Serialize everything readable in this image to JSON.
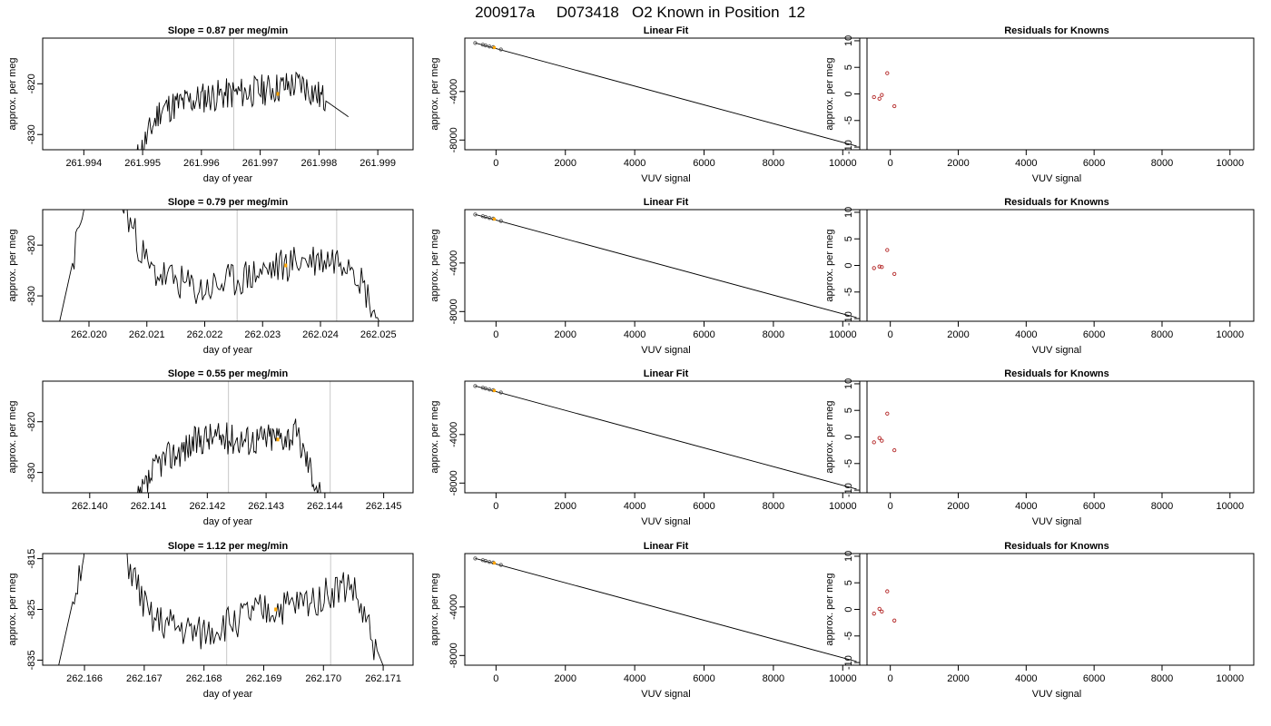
{
  "figure": {
    "title": "200917a     D073418   O2 Known in Position  12",
    "columns": [
      {
        "title_template": "Slope =  {slope}  per meg/min",
        "xlabel": "day of year",
        "ylabel": "approx. per meg"
      },
      {
        "title": "Linear Fit",
        "xlabel": "VUV signal",
        "ylabel": "approx. per meg"
      },
      {
        "title": "Residuals for Knowns",
        "xlabel": "VUV signal",
        "ylabel": "approx. per meg"
      }
    ],
    "colors": {
      "trace": "#000000",
      "marker_line": "#c8c8c8",
      "highlight": "#ffa500",
      "residual_point": "#b22222"
    }
  },
  "chart_data": [
    {
      "type": "line",
      "row": 1,
      "title": "Slope =  0.87  per meg/min",
      "slope": "0.87",
      "xlabel": "day of year",
      "ylabel": "approx. per meg",
      "xlim": [
        261.9933,
        261.9996
      ],
      "ylim": [
        -833,
        -811
      ],
      "xticks": [
        261.994,
        261.995,
        261.996,
        261.997,
        261.998,
        261.999
      ],
      "xtick_labels": [
        "261.994",
        "261.995",
        "261.996",
        "261.997",
        "261.998",
        "261.999"
      ],
      "yticks": [
        -820,
        -830
      ],
      "ytick_labels": [
        "-820",
        "-830"
      ],
      "markers": [
        261.99655,
        261.99828
      ],
      "trace": {
        "x_start": 261.9945,
        "x_end": 261.9985,
        "segments": [
          [
            -845,
            -825
          ],
          [
            -825,
            -822.5
          ],
          [
            -822.5,
            -821.5
          ],
          [
            -821.5,
            -820
          ],
          [
            -820,
            -826.5
          ]
        ],
        "noise": 1.6,
        "seed": 11
      },
      "highlight": {
        "x": 261.9973,
        "y": -822
      }
    },
    {
      "type": "line",
      "row": 2,
      "title": "Slope =  0.79  per meg/min",
      "slope": "0.79",
      "xlabel": "day of year",
      "ylabel": "approx. per meg",
      "xlim": [
        262.0192,
        262.0256
      ],
      "ylim": [
        -835,
        -813
      ],
      "xticks": [
        262.02,
        262.021,
        262.022,
        262.023,
        262.024,
        262.025
      ],
      "xtick_labels": [
        "262.020",
        "262.021",
        "262.022",
        "262.023",
        "262.024",
        "262.025"
      ],
      "yticks": [
        -820,
        -830
      ],
      "ytick_labels": [
        "-820",
        "-830"
      ],
      "markers": [
        262.02256,
        262.02428
      ],
      "trace": {
        "x_start": 262.0193,
        "x_end": 262.0254,
        "segments": [
          [
            -845,
            -800
          ],
          [
            -800,
            -825
          ],
          [
            -825,
            -829
          ],
          [
            -829,
            -826
          ],
          [
            -826,
            -823
          ],
          [
            -823,
            -822.5
          ],
          [
            -822.5,
            -845
          ]
        ],
        "noise": 1.8,
        "seed": 23
      },
      "highlight": {
        "x": 262.0234,
        "y": -824
      }
    },
    {
      "type": "line",
      "row": 3,
      "title": "Slope =  0.55  per meg/min",
      "slope": "0.55",
      "xlabel": "day of year",
      "ylabel": "approx. per meg",
      "xlim": [
        262.1392,
        262.1455
      ],
      "ylim": [
        -834,
        -812
      ],
      "xticks": [
        262.14,
        262.141,
        262.142,
        262.143,
        262.144,
        262.145
      ],
      "xtick_labels": [
        "262.140",
        "262.141",
        "262.142",
        "262.143",
        "262.144",
        "262.145"
      ],
      "yticks": [
        -820,
        -830
      ],
      "ytick_labels": [
        "-820",
        "-830"
      ],
      "markers": [
        262.14236,
        262.14409
      ],
      "trace": {
        "x_start": 262.1404,
        "x_end": 262.1443,
        "segments": [
          [
            -845,
            -828
          ],
          [
            -828,
            -823
          ],
          [
            -823,
            -823.5
          ],
          [
            -823.5,
            -822.5
          ],
          [
            -822.5,
            -845
          ]
        ],
        "noise": 1.6,
        "seed": 37
      },
      "highlight": {
        "x": 262.1432,
        "y": -823.5
      }
    },
    {
      "type": "line",
      "row": 4,
      "title": "Slope =  1.12  per meg/min",
      "slope": "1.12",
      "xlabel": "day of year",
      "ylabel": "approx. per meg",
      "xlim": [
        262.1653,
        262.1715
      ],
      "ylim": [
        -836,
        -814
      ],
      "xticks": [
        262.166,
        262.167,
        262.168,
        262.169,
        262.17,
        262.171
      ],
      "xtick_labels": [
        "262.166",
        "262.167",
        "262.168",
        "262.169",
        "262.170",
        "262.171"
      ],
      "yticks": [
        -815,
        -825,
        -835
      ],
      "ytick_labels": [
        "-815",
        "-825",
        "-835"
      ],
      "markers": [
        262.16838,
        262.17012
      ],
      "trace": {
        "x_start": 262.1654,
        "x_end": 262.1713,
        "segments": [
          [
            -845,
            -800
          ],
          [
            -800,
            -827
          ],
          [
            -827,
            -830
          ],
          [
            -830,
            -826
          ],
          [
            -826,
            -824
          ],
          [
            -824,
            -820
          ],
          [
            -820,
            -845
          ]
        ],
        "noise": 1.8,
        "seed": 51
      },
      "highlight": {
        "x": 262.1692,
        "y": -825
      }
    },
    {
      "type": "scatter",
      "row": 1,
      "title": "Linear Fit",
      "xlabel": "VUV signal",
      "ylabel": "approx. per meg",
      "xlim": [
        -900,
        10700
      ],
      "ylim": [
        -8800,
        400
      ],
      "xticks": [
        0,
        2000,
        4000,
        6000,
        8000,
        10000
      ],
      "xtick_labels": [
        "0",
        "2000",
        "4000",
        "6000",
        "8000",
        "10000"
      ],
      "yticks": [
        -4000,
        -8000
      ],
      "ytick_labels": [
        "-4000",
        "-8000"
      ],
      "fit_line": [
        [
          -600,
          0
        ],
        [
          10400,
          -8500
        ]
      ],
      "points": [
        [
          -600,
          -5
        ],
        [
          -380,
          -140
        ],
        [
          -300,
          -205
        ],
        [
          -190,
          -290
        ],
        [
          -80,
          -345
        ],
        [
          140,
          -535
        ]
      ],
      "highlight": {
        "x": -50,
        "y": -380
      }
    },
    {
      "type": "scatter",
      "row": 2,
      "title": "Linear Fit",
      "xlabel": "VUV signal",
      "ylabel": "approx. per meg",
      "xlim": [
        -900,
        10700
      ],
      "ylim": [
        -8800,
        400
      ],
      "xticks": [
        0,
        2000,
        4000,
        6000,
        8000,
        10000
      ],
      "xtick_labels": [
        "0",
        "2000",
        "4000",
        "6000",
        "8000",
        "10000"
      ],
      "yticks": [
        -4000,
        -8000
      ],
      "ytick_labels": [
        "-4000",
        "-8000"
      ],
      "fit_line": [
        [
          -600,
          0
        ],
        [
          10400,
          -8500
        ]
      ],
      "points": [
        [
          -600,
          -5
        ],
        [
          -380,
          -140
        ],
        [
          -300,
          -205
        ],
        [
          -190,
          -290
        ],
        [
          -80,
          -345
        ],
        [
          140,
          -535
        ]
      ],
      "highlight": {
        "x": -50,
        "y": -380
      }
    },
    {
      "type": "scatter",
      "row": 3,
      "title": "Linear Fit",
      "xlabel": "VUV signal",
      "ylabel": "approx. per meg",
      "xlim": [
        -900,
        10700
      ],
      "ylim": [
        -8800,
        400
      ],
      "xticks": [
        0,
        2000,
        4000,
        6000,
        8000,
        10000
      ],
      "xtick_labels": [
        "0",
        "2000",
        "4000",
        "6000",
        "8000",
        "10000"
      ],
      "yticks": [
        -4000,
        -8000
      ],
      "ytick_labels": [
        "-4000",
        "-8000"
      ],
      "fit_line": [
        [
          -600,
          0
        ],
        [
          10400,
          -8500
        ]
      ],
      "points": [
        [
          -600,
          -5
        ],
        [
          -380,
          -140
        ],
        [
          -300,
          -205
        ],
        [
          -190,
          -290
        ],
        [
          -80,
          -345
        ],
        [
          140,
          -535
        ]
      ],
      "highlight": {
        "x": -50,
        "y": -380
      }
    },
    {
      "type": "scatter",
      "row": 4,
      "title": "Linear Fit",
      "xlabel": "VUV signal",
      "ylabel": "approx. per meg",
      "xlim": [
        -900,
        10700
      ],
      "ylim": [
        -8800,
        400
      ],
      "xticks": [
        0,
        2000,
        4000,
        6000,
        8000,
        10000
      ],
      "xtick_labels": [
        "0",
        "2000",
        "4000",
        "6000",
        "8000",
        "10000"
      ],
      "yticks": [
        -4000,
        -8000
      ],
      "ytick_labels": [
        "-4000",
        "-8000"
      ],
      "fit_line": [
        [
          -600,
          0
        ],
        [
          10400,
          -8500
        ]
      ],
      "points": [
        [
          -600,
          -5
        ],
        [
          -380,
          -140
        ],
        [
          -300,
          -205
        ],
        [
          -190,
          -290
        ],
        [
          -80,
          -345
        ],
        [
          140,
          -535
        ]
      ],
      "highlight": {
        "x": -50,
        "y": -380
      }
    },
    {
      "type": "scatter",
      "row": 1,
      "title": "Residuals for Knowns",
      "xlabel": "VUV signal",
      "ylabel": "approx. per meg",
      "xlim": [
        -900,
        10700
      ],
      "ylim": [
        -10.5,
        10.5
      ],
      "xticks": [
        0,
        2000,
        4000,
        6000,
        8000,
        10000
      ],
      "xtick_labels": [
        "0",
        "2000",
        "4000",
        "6000",
        "8000",
        "10000"
      ],
      "yticks": [
        10,
        5,
        0,
        -5,
        -10
      ],
      "ytick_labels": [
        "10",
        "5",
        "0",
        "-5",
        "-10"
      ],
      "points": [
        [
          -480,
          -0.6
        ],
        [
          -320,
          -0.9
        ],
        [
          -250,
          -0.2
        ],
        [
          -90,
          3.9
        ],
        [
          120,
          -2.3
        ]
      ]
    },
    {
      "type": "scatter",
      "row": 2,
      "title": "Residuals for Knowns",
      "xlabel": "VUV signal",
      "ylabel": "approx. per meg",
      "xlim": [
        -900,
        10700
      ],
      "ylim": [
        -10.5,
        10.5
      ],
      "xticks": [
        0,
        2000,
        4000,
        6000,
        8000,
        10000
      ],
      "xtick_labels": [
        "0",
        "2000",
        "4000",
        "6000",
        "8000",
        "10000"
      ],
      "yticks": [
        10,
        5,
        0,
        -5,
        -10
      ],
      "ytick_labels": [
        "10",
        "5",
        "0",
        "-5",
        "-10"
      ],
      "points": [
        [
          -480,
          -0.5
        ],
        [
          -320,
          -0.2
        ],
        [
          -250,
          -0.3
        ],
        [
          -90,
          2.9
        ],
        [
          120,
          -1.6
        ]
      ]
    },
    {
      "type": "scatter",
      "row": 3,
      "title": "Residuals for Knowns",
      "xlabel": "VUV signal",
      "ylabel": "approx. per meg",
      "xlim": [
        -900,
        10700
      ],
      "ylim": [
        -10.5,
        10.5
      ],
      "xticks": [
        0,
        2000,
        4000,
        6000,
        8000,
        10000
      ],
      "xtick_labels": [
        "0",
        "2000",
        "4000",
        "6000",
        "8000",
        "10000"
      ],
      "yticks": [
        10,
        5,
        0,
        -5,
        -10
      ],
      "ytick_labels": [
        "10",
        "5",
        "0",
        "-5",
        "-10"
      ],
      "points": [
        [
          -480,
          -1.0
        ],
        [
          -320,
          -0.2
        ],
        [
          -250,
          -0.7
        ],
        [
          -90,
          4.4
        ],
        [
          120,
          -2.5
        ]
      ]
    },
    {
      "type": "scatter",
      "row": 4,
      "title": "Residuals for Knowns",
      "xlabel": "VUV signal",
      "ylabel": "approx. per meg",
      "xlim": [
        -900,
        10700
      ],
      "ylim": [
        -10.5,
        10.5
      ],
      "xticks": [
        0,
        2000,
        4000,
        6000,
        8000,
        10000
      ],
      "xtick_labels": [
        "0",
        "2000",
        "4000",
        "6000",
        "8000",
        "10000"
      ],
      "yticks": [
        10,
        5,
        0,
        -5,
        -10
      ],
      "ytick_labels": [
        "10",
        "5",
        "0",
        "-5",
        "-10"
      ],
      "points": [
        [
          -480,
          -0.8
        ],
        [
          -320,
          0.1
        ],
        [
          -250,
          -0.4
        ],
        [
          -90,
          3.4
        ],
        [
          120,
          -2.1
        ]
      ]
    }
  ]
}
